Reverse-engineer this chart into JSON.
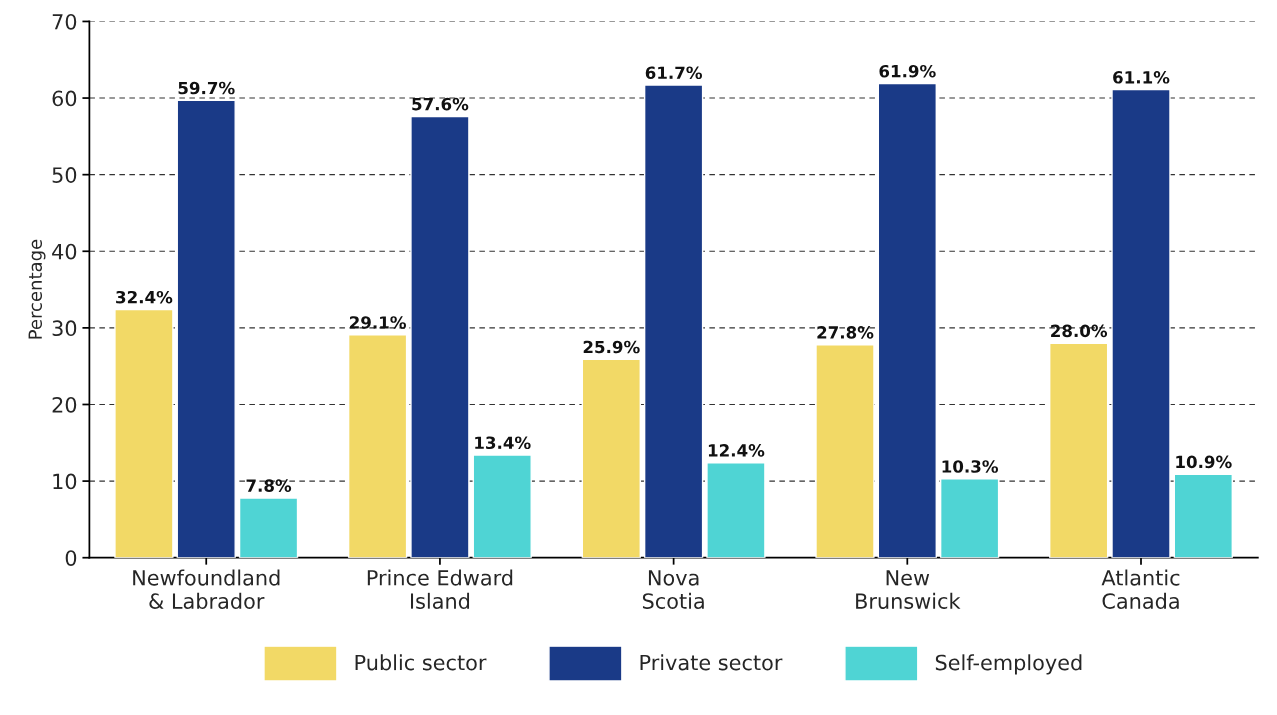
{
  "chart_data": {
    "type": "bar",
    "ylabel": "Percentage",
    "categories": [
      "Newfoundland\n& Labrador",
      "Prince Edward\nIsland",
      "Nova\nScotia",
      "New\nBrunswick",
      "Atlantic\nCanada"
    ],
    "series": [
      {
        "name": "Public sector",
        "color": "#f2d966",
        "values": [
          32.4,
          29.1,
          25.9,
          27.8,
          28.0
        ],
        "value_labels": [
          "32.4%",
          "29.1%",
          "25.9%",
          "27.8%",
          "28.0%"
        ]
      },
      {
        "name": "Private sector",
        "color": "#1a3a87",
        "values": [
          59.7,
          57.6,
          61.7,
          61.9,
          61.1
        ],
        "value_labels": [
          "59.7%",
          "57.6%",
          "61.7%",
          "61.9%",
          "61.1%"
        ]
      },
      {
        "name": "Self-employed",
        "color": "#4fd4d4",
        "values": [
          7.8,
          13.4,
          12.4,
          10.3,
          10.9
        ],
        "value_labels": [
          "7.8%",
          "13.4%",
          "12.4%",
          "10.3%",
          "10.9%"
        ]
      }
    ],
    "ylim": [
      0,
      70
    ],
    "yticks": [
      0,
      10,
      20,
      30,
      40,
      50,
      60,
      70
    ],
    "grid": "y",
    "legend": "bottom"
  }
}
